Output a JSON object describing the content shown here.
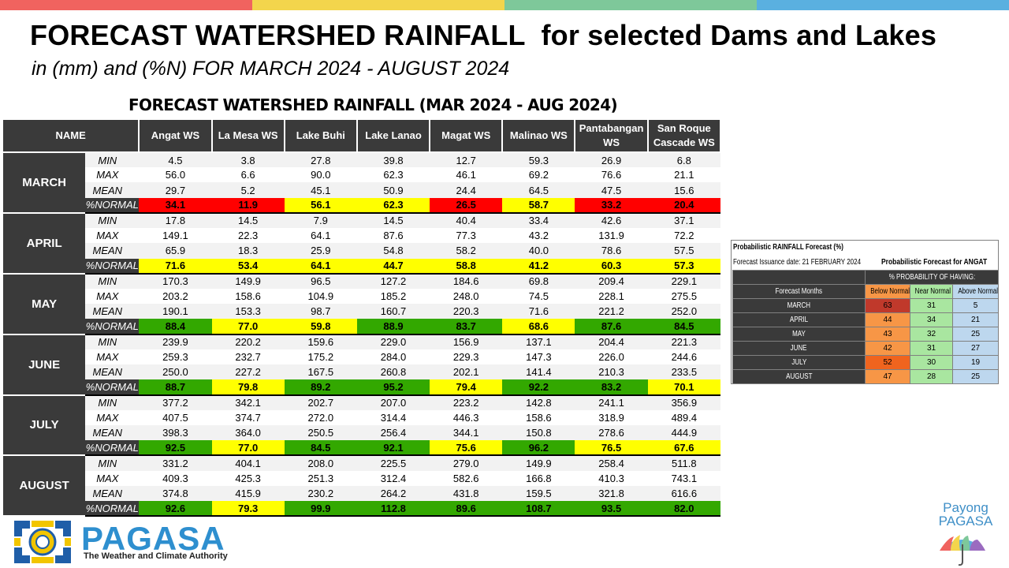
{
  "topbar_colors": [
    "#f0635f",
    "#f3d54c",
    "#7ec89a",
    "#5ab0e0"
  ],
  "header": {
    "title": "FORECAST WATERSHED RAINFALL  for selected Dams and Lakes",
    "subtitle": "in (mm) and (%N) FOR MARCH 2024 - AUGUST 2024"
  },
  "table": {
    "title": "FORECAST WATERSHED RAINFALL (MAR 2024 - AUG 2024)",
    "name_header": "NAME",
    "columns": [
      "Angat WS",
      "La Mesa WS",
      "Lake Buhi",
      "Lake Lanao",
      "Magat WS",
      "Malinao WS",
      "Pantabangan WS",
      "San Roque Cascade WS"
    ],
    "stat_labels": {
      "min": "MIN",
      "max": "MAX",
      "mean": "MEAN",
      "normal": "%NORMAL"
    },
    "color_legend": {
      "red": "#ff0000",
      "yellow": "#ffff00",
      "green": "#33a800"
    },
    "months": [
      {
        "name": "MARCH",
        "min": [
          "4.5",
          "3.8",
          "27.8",
          "39.8",
          "12.7",
          "59.3",
          "26.9",
          "6.8"
        ],
        "max": [
          "56.0",
          "6.6",
          "90.0",
          "62.3",
          "46.1",
          "69.2",
          "76.6",
          "21.1"
        ],
        "mean": [
          "29.7",
          "5.2",
          "45.1",
          "50.9",
          "24.4",
          "64.5",
          "47.5",
          "15.6"
        ],
        "normal": [
          "34.1",
          "11.9",
          "56.1",
          "62.3",
          "26.5",
          "58.7",
          "33.2",
          "20.4"
        ],
        "normal_colors": [
          "red",
          "red",
          "yellow",
          "yellow",
          "red",
          "yellow",
          "red",
          "red"
        ]
      },
      {
        "name": "APRIL",
        "min": [
          "17.8",
          "14.5",
          "7.9",
          "14.5",
          "40.4",
          "33.4",
          "42.6",
          "37.1"
        ],
        "max": [
          "149.1",
          "22.3",
          "64.1",
          "87.6",
          "77.3",
          "43.2",
          "131.9",
          "72.2"
        ],
        "mean": [
          "65.9",
          "18.3",
          "25.9",
          "54.8",
          "58.2",
          "40.0",
          "78.6",
          "57.5"
        ],
        "normal": [
          "71.6",
          "53.4",
          "64.1",
          "44.7",
          "58.8",
          "41.2",
          "60.3",
          "57.3"
        ],
        "normal_colors": [
          "yellow",
          "yellow",
          "yellow",
          "yellow",
          "yellow",
          "yellow",
          "yellow",
          "yellow"
        ]
      },
      {
        "name": "MAY",
        "min": [
          "170.3",
          "149.9",
          "96.5",
          "127.2",
          "184.6",
          "69.8",
          "209.4",
          "229.1"
        ],
        "max": [
          "203.2",
          "158.6",
          "104.9",
          "185.2",
          "248.0",
          "74.5",
          "228.1",
          "275.5"
        ],
        "mean": [
          "190.1",
          "153.3",
          "98.7",
          "160.7",
          "220.3",
          "71.6",
          "221.2",
          "252.0"
        ],
        "normal": [
          "88.4",
          "77.0",
          "59.8",
          "88.9",
          "83.7",
          "68.6",
          "87.6",
          "84.5"
        ],
        "normal_colors": [
          "green",
          "yellow",
          "yellow",
          "green",
          "green",
          "yellow",
          "green",
          "green"
        ]
      },
      {
        "name": "JUNE",
        "min": [
          "239.9",
          "220.2",
          "159.6",
          "229.0",
          "156.9",
          "137.1",
          "204.4",
          "221.3"
        ],
        "max": [
          "259.3",
          "232.7",
          "175.2",
          "284.0",
          "229.3",
          "147.3",
          "226.0",
          "244.6"
        ],
        "mean": [
          "250.0",
          "227.2",
          "167.5",
          "260.8",
          "202.1",
          "141.4",
          "210.3",
          "233.5"
        ],
        "normal": [
          "88.7",
          "79.8",
          "89.2",
          "95.2",
          "79.4",
          "92.2",
          "83.2",
          "70.1"
        ],
        "normal_colors": [
          "green",
          "yellow",
          "green",
          "green",
          "yellow",
          "green",
          "green",
          "yellow"
        ]
      },
      {
        "name": "JULY",
        "min": [
          "377.2",
          "342.1",
          "202.7",
          "207.0",
          "223.2",
          "142.8",
          "241.1",
          "356.9"
        ],
        "max": [
          "407.5",
          "374.7",
          "272.0",
          "314.4",
          "446.3",
          "158.6",
          "318.9",
          "489.4"
        ],
        "mean": [
          "398.3",
          "364.0",
          "250.5",
          "256.4",
          "344.1",
          "150.8",
          "278.6",
          "444.9"
        ],
        "normal": [
          "92.5",
          "77.0",
          "84.5",
          "92.1",
          "75.6",
          "96.2",
          "76.5",
          "67.6"
        ],
        "normal_colors": [
          "green",
          "yellow",
          "green",
          "green",
          "yellow",
          "green",
          "yellow",
          "yellow"
        ]
      },
      {
        "name": "AUGUST",
        "min": [
          "331.2",
          "404.1",
          "208.0",
          "225.5",
          "279.0",
          "149.9",
          "258.4",
          "511.8"
        ],
        "max": [
          "409.3",
          "425.3",
          "251.3",
          "312.4",
          "582.6",
          "166.8",
          "410.3",
          "743.1"
        ],
        "mean": [
          "374.8",
          "415.9",
          "230.2",
          "264.2",
          "431.8",
          "159.5",
          "321.8",
          "616.6"
        ],
        "normal": [
          "92.6",
          "79.3",
          "99.9",
          "112.8",
          "89.6",
          "108.7",
          "93.5",
          "82.0"
        ],
        "normal_colors": [
          "green",
          "yellow",
          "green",
          "green",
          "green",
          "green",
          "green",
          "green"
        ]
      }
    ]
  },
  "prob": {
    "title": "Probabilistic RAINFALL Forecast (%)",
    "issuance": "Forecast Issuance date: 21 FEBRUARY 2024",
    "forecast_for": "Probabilistic Forecast for ANGAT",
    "prob_header": "% PROBABILITY  OF HAVING:",
    "col_months": "Forecast Months",
    "col_below": "Below Normal",
    "col_near": "Near Normal",
    "col_above": "Above Normal",
    "rows": [
      {
        "month": "MARCH",
        "below": "63",
        "near": "31",
        "above": "5",
        "below_color": "#c0392b"
      },
      {
        "month": "APRIL",
        "below": "44",
        "near": "34",
        "above": "21",
        "below_color": "#f79646"
      },
      {
        "month": "MAY",
        "below": "43",
        "near": "32",
        "above": "25",
        "below_color": "#f79646"
      },
      {
        "month": "JUNE",
        "below": "42",
        "near": "31",
        "above": "27",
        "below_color": "#f79646"
      },
      {
        "month": "JULY",
        "below": "52",
        "near": "30",
        "above": "19",
        "below_color": "#f0641e"
      },
      {
        "month": "AUGUST",
        "below": "47",
        "near": "28",
        "above": "25",
        "below_color": "#f79646"
      }
    ]
  },
  "footer": {
    "logo_text": "PAGASA",
    "tagline": "The Weather and Climate Authority",
    "payong_line1": "Payong",
    "payong_line2": "PAGASA"
  }
}
